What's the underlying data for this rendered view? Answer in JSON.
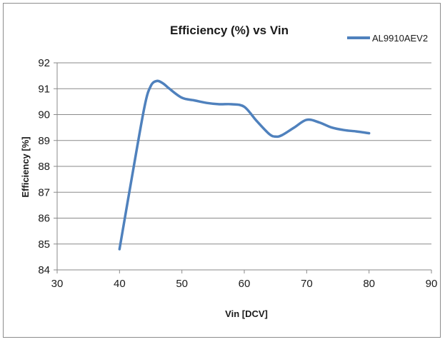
{
  "chart_data": {
    "type": "line",
    "title": "Efficiency (%) vs Vin",
    "xlabel": "Vin [DCV]",
    "ylabel": "Efficiency [%]",
    "xlim": [
      30,
      90
    ],
    "ylim": [
      84,
      92
    ],
    "x_ticks": [
      30,
      40,
      50,
      60,
      70,
      80,
      90
    ],
    "y_ticks": [
      84,
      85,
      86,
      87,
      88,
      89,
      90,
      91,
      92
    ],
    "grid": "horizontal",
    "legend_position": "top-right",
    "series": [
      {
        "name": "AL9910AEV2",
        "color": "#4f81bd",
        "x": [
          40,
          42,
          44,
          45,
          46,
          47,
          48,
          50,
          52,
          54,
          56,
          58,
          60,
          62,
          64,
          65,
          66,
          68,
          70,
          72,
          74,
          76,
          78,
          80
        ],
        "y": [
          84.8,
          87.6,
          90.3,
          91.1,
          91.3,
          91.2,
          91.0,
          90.65,
          90.55,
          90.45,
          90.4,
          90.4,
          90.3,
          89.75,
          89.25,
          89.15,
          89.2,
          89.5,
          89.8,
          89.7,
          89.5,
          89.4,
          89.35,
          89.28
        ]
      }
    ]
  }
}
